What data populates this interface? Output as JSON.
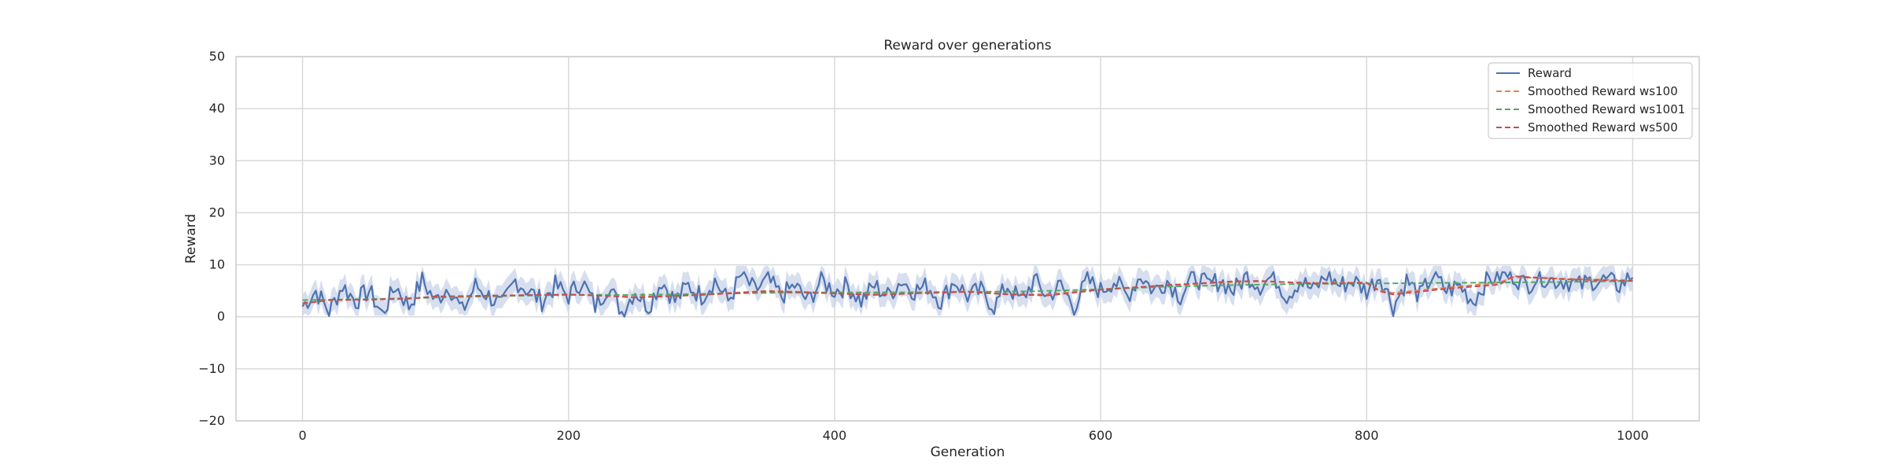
{
  "chart_data": {
    "type": "line",
    "title": "Reward over generations",
    "xlabel": "Generation",
    "ylabel": "Reward",
    "xlim": [
      -50,
      1050
    ],
    "ylim": [
      -20,
      50
    ],
    "xticks": [
      0,
      200,
      400,
      600,
      800,
      1000
    ],
    "yticks": [
      -20,
      -10,
      0,
      10,
      20,
      30,
      40,
      50
    ],
    "grid": true,
    "legend_position": "top-right",
    "series": [
      {
        "name": "Reward",
        "color": "#4c72b0",
        "style": "solid",
        "band_color": "#c9d3e8",
        "x": [
          0,
          10,
          20,
          30,
          40,
          50,
          60,
          70,
          80,
          90,
          100,
          110,
          120,
          130,
          140,
          150,
          160,
          170,
          180,
          190,
          200,
          210,
          220,
          230,
          240,
          250,
          260,
          270,
          280,
          290,
          300,
          310,
          320,
          330,
          340,
          350,
          360,
          370,
          380,
          390,
          400,
          410,
          420,
          430,
          440,
          450,
          460,
          470,
          480,
          490,
          500,
          510,
          520,
          530,
          540,
          550,
          560,
          570,
          580,
          590,
          600,
          610,
          620,
          630,
          640,
          650,
          660,
          670,
          680,
          690,
          700,
          710,
          720,
          730,
          740,
          750,
          760,
          770,
          780,
          790,
          800,
          810,
          820,
          830,
          840,
          850,
          860,
          870,
          880,
          890,
          900,
          910,
          920,
          930,
          940,
          950,
          960,
          970,
          980,
          990,
          1000
        ],
        "y": [
          2,
          5,
          1,
          6,
          3,
          5,
          0.5,
          6,
          2,
          7,
          3,
          6,
          1,
          6,
          4,
          2,
          7,
          5,
          3,
          6,
          4,
          7,
          2,
          6,
          1,
          5,
          2,
          7,
          3,
          6,
          4,
          7,
          3,
          8,
          5,
          7,
          4,
          6,
          3,
          7,
          5,
          6,
          3,
          6,
          4,
          7,
          5,
          6,
          3,
          7,
          4,
          5,
          2,
          6,
          3,
          7,
          4,
          6,
          2,
          7,
          5,
          7,
          4,
          8,
          5,
          7,
          4,
          8,
          6,
          7,
          5,
          8,
          6,
          8,
          4,
          7,
          5,
          8,
          6,
          7,
          5,
          8,
          2,
          7,
          4,
          8,
          5,
          6,
          3,
          7,
          8,
          8,
          6,
          8,
          7,
          7,
          6,
          7,
          7,
          6,
          8
        ]
      },
      {
        "name": "Smoothed Reward ws100",
        "color": "#dd8452",
        "style": "dashed",
        "x": [
          0,
          20,
          50,
          80,
          100,
          150,
          200,
          230,
          250,
          300,
          350,
          400,
          430,
          460,
          500,
          530,
          560,
          600,
          650,
          700,
          720,
          760,
          800,
          810,
          820,
          860,
          900,
          910,
          950,
          1000
        ],
        "y": [
          2.5,
          3.2,
          3.3,
          3.5,
          3.8,
          4.0,
          4.3,
          4.1,
          3.8,
          4.3,
          5.0,
          4.6,
          4.4,
          4.6,
          4.9,
          4.4,
          4.3,
          5.3,
          6.0,
          6.7,
          6.8,
          6.5,
          6.6,
          5.0,
          4.6,
          5.6,
          6.6,
          7.6,
          7.3,
          7.0
        ]
      },
      {
        "name": "Smoothed Reward ws1001",
        "color": "#55a868",
        "style": "dashed",
        "x": [
          0,
          50,
          100,
          150,
          200,
          250,
          300,
          350,
          400,
          450,
          500,
          550,
          600,
          650,
          700,
          750,
          800,
          850,
          900,
          950,
          1000
        ],
        "y": [
          3.2,
          3.4,
          3.7,
          4.0,
          4.2,
          4.2,
          4.4,
          4.6,
          4.7,
          4.7,
          4.8,
          4.9,
          5.3,
          5.8,
          6.1,
          6.3,
          6.4,
          6.5,
          6.6,
          6.7,
          6.9
        ]
      },
      {
        "name": "Smoothed Reward ws500",
        "color": "#c44e52",
        "style": "dashed",
        "x": [
          0,
          20,
          50,
          80,
          100,
          150,
          200,
          230,
          250,
          300,
          350,
          400,
          430,
          460,
          500,
          530,
          560,
          600,
          650,
          700,
          720,
          760,
          800,
          810,
          820,
          860,
          900,
          910,
          950,
          1000
        ],
        "y": [
          2.6,
          3.2,
          3.3,
          3.5,
          3.9,
          4.1,
          4.3,
          4.0,
          3.7,
          4.2,
          4.9,
          4.5,
          4.2,
          4.5,
          4.8,
          4.3,
          4.1,
          5.2,
          6.1,
          6.8,
          6.9,
          6.4,
          6.5,
          4.9,
          4.3,
          5.4,
          6.2,
          7.8,
          7.2,
          6.9
        ]
      }
    ]
  }
}
